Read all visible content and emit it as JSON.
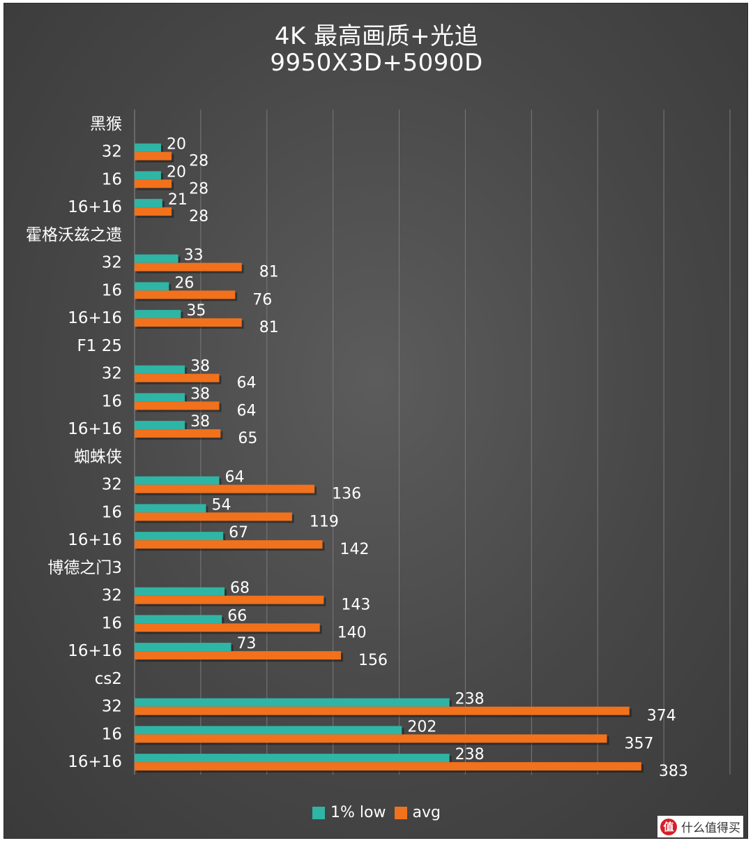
{
  "chart_data": {
    "type": "bar",
    "orientation": "horizontal",
    "title": "4K 最高画质+光追",
    "subtitle": "9950X3D+5090D",
    "xlim": [
      0,
      450
    ],
    "grid": true,
    "legend_position": "bottom",
    "series": [
      {
        "name": "1% low",
        "color": "#2fb5a5"
      },
      {
        "name": "avg",
        "color": "#f2711c"
      }
    ],
    "groups": [
      {
        "name": "黑猴",
        "rows": [
          {
            "label": "32",
            "low": 20,
            "avg": 28
          },
          {
            "label": "16",
            "low": 20,
            "avg": 28
          },
          {
            "label": "16+16",
            "low": 21,
            "avg": 28
          }
        ]
      },
      {
        "name": "霍格沃兹之遗",
        "rows": [
          {
            "label": "32",
            "low": 33,
            "avg": 81
          },
          {
            "label": "16",
            "low": 26,
            "avg": 76
          },
          {
            "label": "16+16",
            "low": 35,
            "avg": 81
          }
        ]
      },
      {
        "name": "F1 25",
        "rows": [
          {
            "label": "32",
            "low": 38,
            "avg": 64
          },
          {
            "label": "16",
            "low": 38,
            "avg": 64
          },
          {
            "label": "16+16",
            "low": 38,
            "avg": 65
          }
        ]
      },
      {
        "name": "蜘蛛侠",
        "rows": [
          {
            "label": "32",
            "low": 64,
            "avg": 136
          },
          {
            "label": "16",
            "low": 54,
            "avg": 119
          },
          {
            "label": "16+16",
            "low": 67,
            "avg": 142
          }
        ]
      },
      {
        "name": "博德之门3",
        "rows": [
          {
            "label": "32",
            "low": 68,
            "avg": 143
          },
          {
            "label": "16",
            "low": 66,
            "avg": 140
          },
          {
            "label": "16+16",
            "low": 73,
            "avg": 156
          }
        ]
      },
      {
        "name": "cs2",
        "rows": [
          {
            "label": "32",
            "low": 238,
            "avg": 374
          },
          {
            "label": "16",
            "low": 202,
            "avg": 357
          },
          {
            "label": "16+16",
            "low": 238,
            "avg": 383
          }
        ]
      }
    ]
  },
  "watermark": {
    "icon_text": "值",
    "text": "什么值得买"
  }
}
